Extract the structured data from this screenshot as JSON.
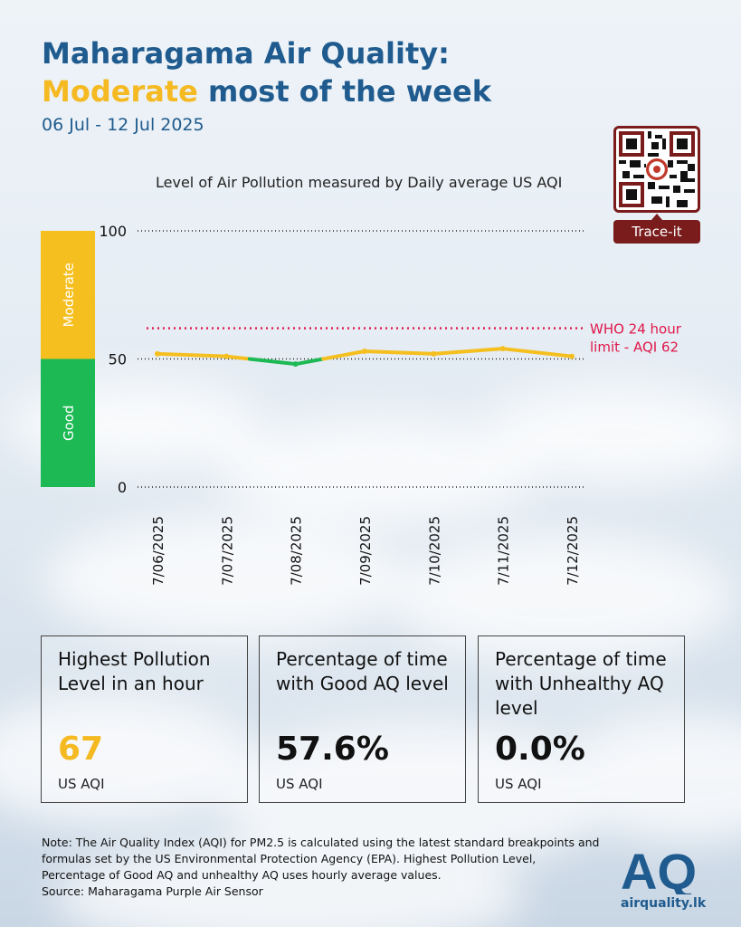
{
  "title": {
    "line1": "Maharagama Air Quality:",
    "highlight": "Moderate",
    "line2_rest": " most of the week"
  },
  "date_range": "06 Jul - 12 Jul 2025",
  "qr": {
    "button_label": "Trace-it"
  },
  "chart_data": {
    "type": "line",
    "title": "Level of Air Pollution measured by Daily average US AQI",
    "categories": [
      "7/06/2025",
      "7/07/2025",
      "7/08/2025",
      "7/09/2025",
      "7/10/2025",
      "7/11/2025",
      "7/12/2025"
    ],
    "values": [
      52,
      51,
      48,
      53,
      52,
      54,
      51
    ],
    "ylim": [
      0,
      100
    ],
    "yticks": [
      0,
      50,
      100
    ],
    "grid": "dotted lines at each y tick",
    "bands": [
      {
        "label": "Good",
        "from": 0,
        "to": 50,
        "color": "#1db954"
      },
      {
        "label": "Moderate",
        "from": 50,
        "to": 100,
        "color": "#f5bf1f"
      }
    ],
    "reference_line": {
      "value": 62,
      "label_line1": "WHO 24 hour",
      "label_line2": "limit - AQI 62",
      "color": "#e0174a"
    },
    "colors": {
      "above_50": "#f5bf1f",
      "below_50": "#1db954"
    }
  },
  "stats": [
    {
      "label": "Highest Pollution Level in an hour",
      "value": "67",
      "unit": "US AQI",
      "value_color": "#f5b921"
    },
    {
      "label": "Percentage of time with Good AQ level",
      "value": "57.6%",
      "unit": "US AQI",
      "value_color": "#111111"
    },
    {
      "label": "Percentage of time with Unhealthy AQ level",
      "value": "0.0%",
      "unit": "US AQI",
      "value_color": "#111111"
    }
  ],
  "note": {
    "text": "Note: The Air Quality Index (AQI) for PM2.5 is calculated using the latest standard breakpoints and formulas set by the US Environmental Protection Agency (EPA). Highest Pollution Level, Percentage of Good AQ and unhealthy AQ uses hourly average values.",
    "source": "Source: Maharagama Purple Air Sensor"
  },
  "logo": {
    "mark": "AQ",
    "site": "airquality.lk"
  }
}
